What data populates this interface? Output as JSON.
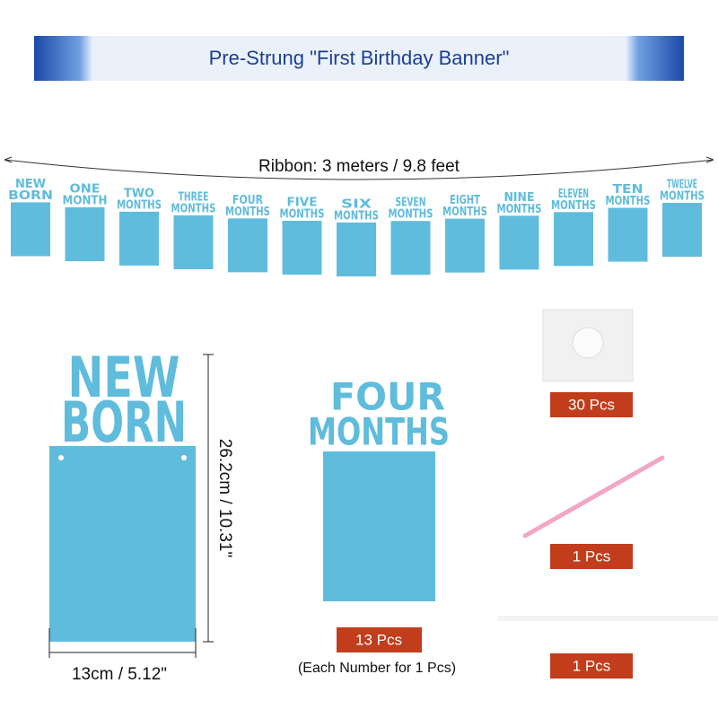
{
  "header": {
    "title": "Pre-Strung \"First Birthday Banner\""
  },
  "ribbon": {
    "label": "Ribbon: 3 meters / 9.8 feet"
  },
  "cards": [
    [
      "NEW",
      "BORN"
    ],
    [
      "ONE",
      "MONTH"
    ],
    [
      "TWO",
      "MONTHS"
    ],
    [
      "THREE",
      "MONTHS"
    ],
    [
      "FOUR",
      "MONTHS"
    ],
    [
      "FIVE",
      "MONTHS"
    ],
    [
      "SIX",
      "MONTHS"
    ],
    [
      "SEVEN",
      "MONTHS"
    ],
    [
      "EIGHT",
      "MONTHS"
    ],
    [
      "NINE",
      "MONTHS"
    ],
    [
      "ELEVEN",
      "MONTHS"
    ],
    [
      "TEN",
      "MONTHS"
    ],
    [
      "TWELVE",
      "MONTHS"
    ]
  ],
  "large_card": {
    "lines": [
      "NEW",
      "BORN"
    ],
    "height": "26.2cm / 10.31\"",
    "width": "13cm / 5.12\""
  },
  "sample_card": {
    "lines": [
      "FOUR",
      "MONTHS"
    ],
    "count": "13 Pcs",
    "note": "(Each Number for 1 Pcs)"
  },
  "accessories": [
    {
      "count": "30 Pcs"
    },
    {
      "count": "1 Pcs"
    },
    {
      "count": "1 Pcs"
    }
  ]
}
